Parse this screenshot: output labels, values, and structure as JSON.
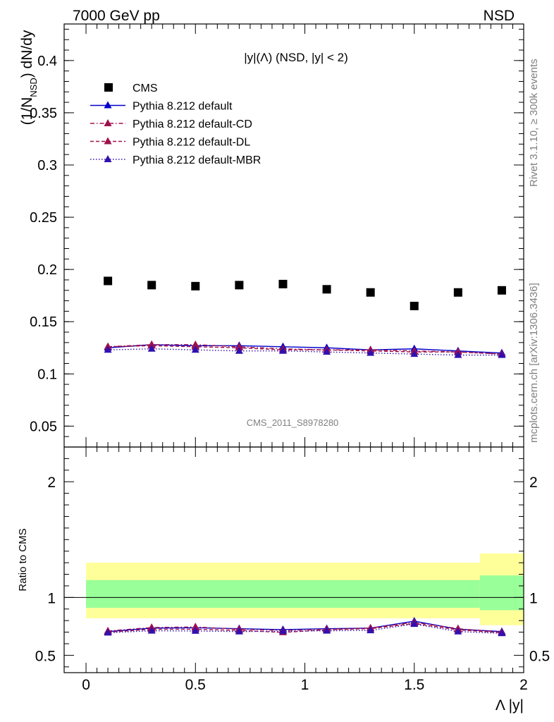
{
  "header": {
    "energy_label": "7000 GeV pp",
    "process_label": "NSD"
  },
  "side_labels": {
    "rivet": "Rivet 3.1.10, ≥ 300k events",
    "mcplots": "mcplots.cern.ch [arXiv:1306.3436]"
  },
  "watermark": "CMS_2011_S8978280",
  "colors": {
    "cms": "#000000",
    "default": "#0000cc",
    "default_cd": "#a0104c",
    "default_dl": "#a0104c",
    "default_mbr": "#3010b0",
    "band_inner": "#99ff99",
    "band_outer": "#ffff99"
  },
  "chart_data": [
    {
      "type": "scatter",
      "panel": "main",
      "title": "|y|(Λ) (NSD, |y| < 2)",
      "ylabel": "(1/N_NSD) dN/dy",
      "xlabel": "",
      "xlim": [
        -0.1,
        2.0
      ],
      "ylim": [
        0.03,
        0.435
      ],
      "y_ticks": [
        "0.05",
        "0.1",
        "0.15",
        "0.2",
        "0.25",
        "0.3",
        "0.35",
        "0.4"
      ],
      "legend_position": "top-left",
      "x": [
        0.1,
        0.3,
        0.5,
        0.7,
        0.9,
        1.1,
        1.3,
        1.5,
        1.7,
        1.9
      ],
      "series": [
        {
          "name": "CMS",
          "style": "data",
          "values": [
            0.189,
            0.185,
            0.184,
            0.185,
            0.186,
            0.181,
            0.178,
            0.165,
            0.178,
            0.18
          ]
        },
        {
          "name": "Pythia 8.212 default",
          "style": "solid",
          "values": [
            0.125,
            0.128,
            0.127,
            0.127,
            0.126,
            0.125,
            0.123,
            0.124,
            0.122,
            0.12
          ]
        },
        {
          "name": "Pythia 8.212 default-CD",
          "style": "dashdot",
          "values": [
            0.126,
            0.128,
            0.128,
            0.126,
            0.124,
            0.123,
            0.123,
            0.122,
            0.121,
            0.119
          ]
        },
        {
          "name": "Pythia 8.212 default-DL",
          "style": "dashed",
          "values": [
            0.126,
            0.127,
            0.126,
            0.125,
            0.123,
            0.123,
            0.122,
            0.121,
            0.121,
            0.119
          ]
        },
        {
          "name": "Pythia 8.212 default-MBR",
          "style": "dotted",
          "values": [
            0.123,
            0.124,
            0.123,
            0.122,
            0.122,
            0.121,
            0.12,
            0.119,
            0.118,
            0.118
          ]
        }
      ]
    },
    {
      "type": "line",
      "panel": "ratio",
      "ylabel": "Ratio to CMS",
      "xlabel": "Λ |y|",
      "xlim": [
        -0.1,
        2.0
      ],
      "ylim": [
        0.35,
        2.3
      ],
      "y_ticks": [
        "0.5",
        "1",
        "2"
      ],
      "x_ticks": [
        "0",
        "0.5",
        "1",
        "1.5",
        "2"
      ],
      "x": [
        0.1,
        0.3,
        0.5,
        0.7,
        0.9,
        1.1,
        1.3,
        1.5,
        1.7,
        1.9
      ],
      "reference_line": 1,
      "bands": [
        {
          "x_range": [
            0.0,
            1.8
          ],
          "inner": [
            0.91,
            1.15
          ],
          "outer": [
            0.82,
            1.3
          ]
        },
        {
          "x_range": [
            1.8,
            2.0
          ],
          "inner": [
            0.89,
            1.19
          ],
          "outer": [
            0.76,
            1.38
          ]
        }
      ],
      "series": [
        {
          "name": "Pythia 8.212 default",
          "values": [
            0.705,
            0.735,
            0.738,
            0.73,
            0.722,
            0.73,
            0.735,
            0.795,
            0.725,
            0.705
          ]
        },
        {
          "name": "Pythia 8.212 default-CD",
          "values": [
            0.71,
            0.74,
            0.745,
            0.725,
            0.715,
            0.725,
            0.735,
            0.785,
            0.73,
            0.7
          ]
        },
        {
          "name": "Pythia 8.212 default-DL",
          "values": [
            0.7,
            0.725,
            0.725,
            0.715,
            0.698,
            0.72,
            0.73,
            0.775,
            0.72,
            0.695
          ]
        },
        {
          "name": "Pythia 8.212 default-MBR",
          "values": [
            0.695,
            0.712,
            0.71,
            0.705,
            0.708,
            0.712,
            0.715,
            0.77,
            0.705,
            0.69
          ]
        }
      ]
    }
  ]
}
